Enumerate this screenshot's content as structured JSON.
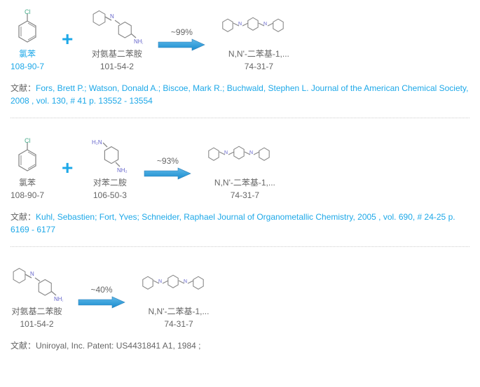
{
  "reactions": [
    {
      "reactants": [
        {
          "struct": "chlorobenzene",
          "name": "氯苯",
          "cas": "108-90-7",
          "hl": true
        },
        {
          "struct": "aminodiphenylamine",
          "name": "对氨基二苯胺",
          "cas": "101-54-2",
          "hl": false
        }
      ],
      "yield": "~99%",
      "product": {
        "struct": "diphenyl-pd",
        "name": "N,N'-二苯基-1,...",
        "cas": "74-31-7"
      },
      "cite_prefix": "文献：",
      "cite_link": "Fors, Brett P.; Watson, Donald A.; Biscoe, Mark R.; Buchwald, Stephen L. Journal of the American Chemical Society, 2008 , vol. 130, # 41 p. 13552 - 13554",
      "cite_link_is": true
    },
    {
      "reactants": [
        {
          "struct": "chlorobenzene",
          "name": "氯苯",
          "cas": "108-90-7",
          "hl": false
        },
        {
          "struct": "pda",
          "name": "对苯二胺",
          "cas": "106-50-3",
          "hl": false
        }
      ],
      "yield": "~93%",
      "product": {
        "struct": "diphenyl-pd",
        "name": "N,N'-二苯基-1,...",
        "cas": "74-31-7"
      },
      "cite_prefix": "文献：",
      "cite_link": "Kuhl, Sebastien; Fort, Yves; Schneider, Raphael Journal of Organometallic Chemistry, 2005 , vol. 690, # 24-25 p. 6169 - 6177",
      "cite_link_is": true
    },
    {
      "reactants": [
        {
          "struct": "aminodiphenylamine",
          "name": "对氨基二苯胺",
          "cas": "101-54-2",
          "hl": false
        }
      ],
      "yield": "~40%",
      "product": {
        "struct": "diphenyl-pd",
        "name": "N,N'-二苯基-1,...",
        "cas": "74-31-7"
      },
      "cite_prefix": "文献：Uniroyal, Inc. Patent: US4431841 A1, 1984 ;",
      "cite_link": "",
      "cite_link_is": false
    }
  ],
  "colors": {
    "accent": "#1da8e8",
    "text": "#666666",
    "arrow_fill": "#1da8e8",
    "arrow_stroke": "#4a90d9",
    "bond": "#666666"
  }
}
